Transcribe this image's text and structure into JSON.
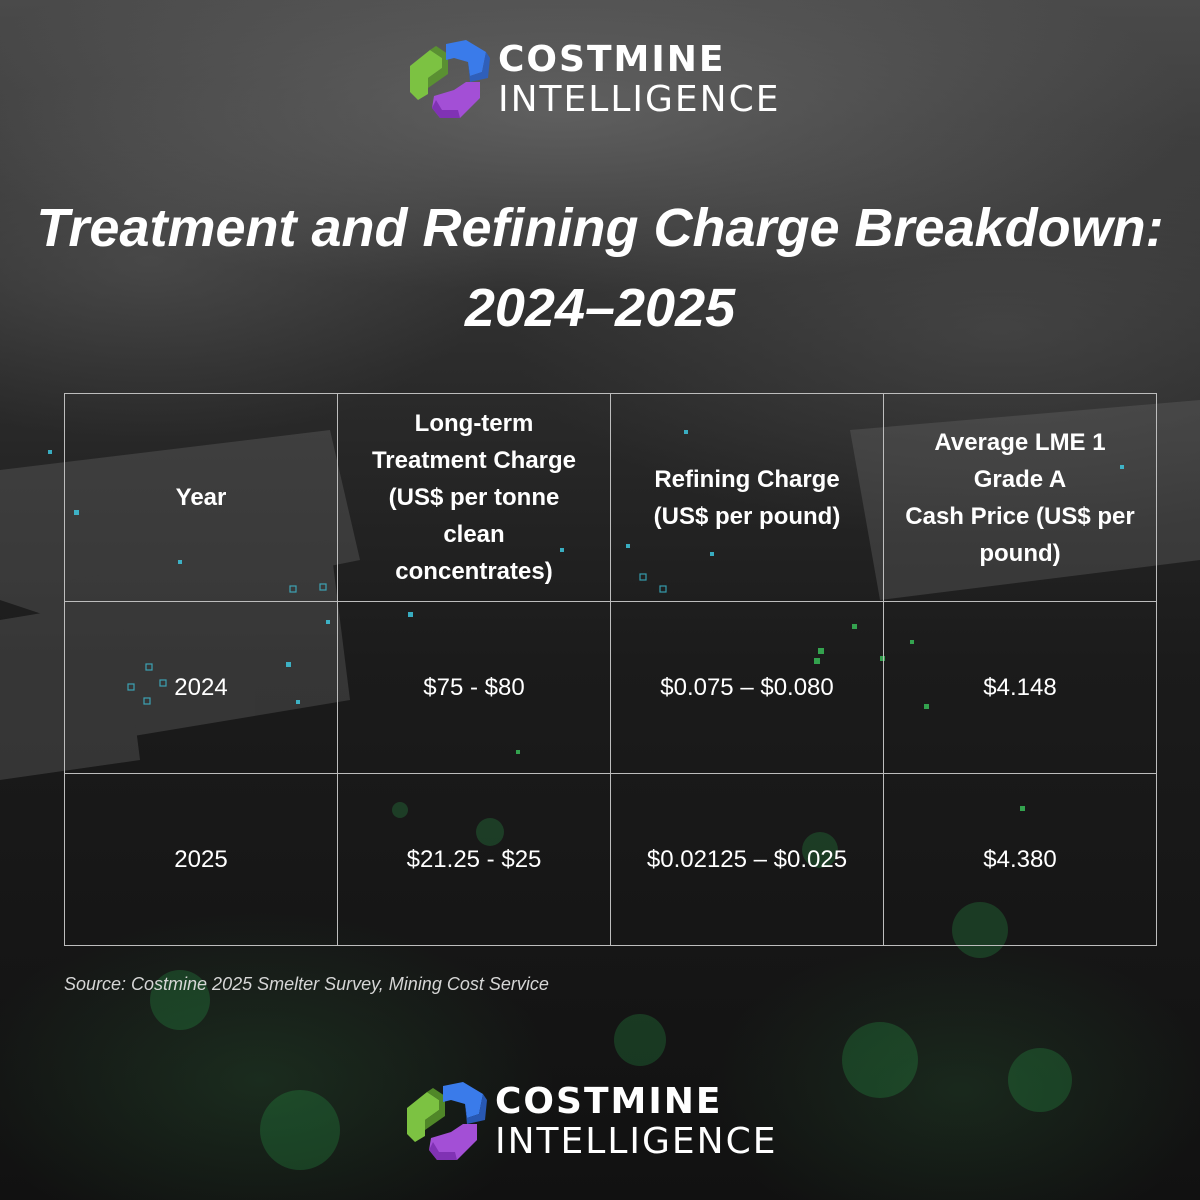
{
  "brand": {
    "line1": "COSTMINE",
    "line2": "INTELLIGENCE",
    "logo_icon": "costmine-logo-icon",
    "colors": {
      "green": "#7cc242",
      "blue": "#3a7bea",
      "purple": "#a34fd6"
    }
  },
  "title": {
    "line1": "Treatment and Refining Charge Breakdown:",
    "line2": "2024–2025"
  },
  "table": {
    "headers": [
      [
        "Year"
      ],
      [
        "Long-term",
        "Treatment Charge",
        "(US$ per tonne",
        "clean",
        "concentrates)"
      ],
      [
        "Refining Charge",
        "(US$ per pound)"
      ],
      [
        "Average LME 1",
        "Grade A",
        "Cash Price (US$ per",
        "pound)"
      ]
    ],
    "rows": [
      [
        "2024",
        "$75 - $80",
        "$0.075 – $0.080",
        "$4.148"
      ],
      [
        "2025",
        "$21.25 - $25",
        "$0.02125 – $0.025",
        "$4.380"
      ]
    ]
  },
  "source": "Source: Costmine 2025 Smelter Survey, Mining Cost Service"
}
